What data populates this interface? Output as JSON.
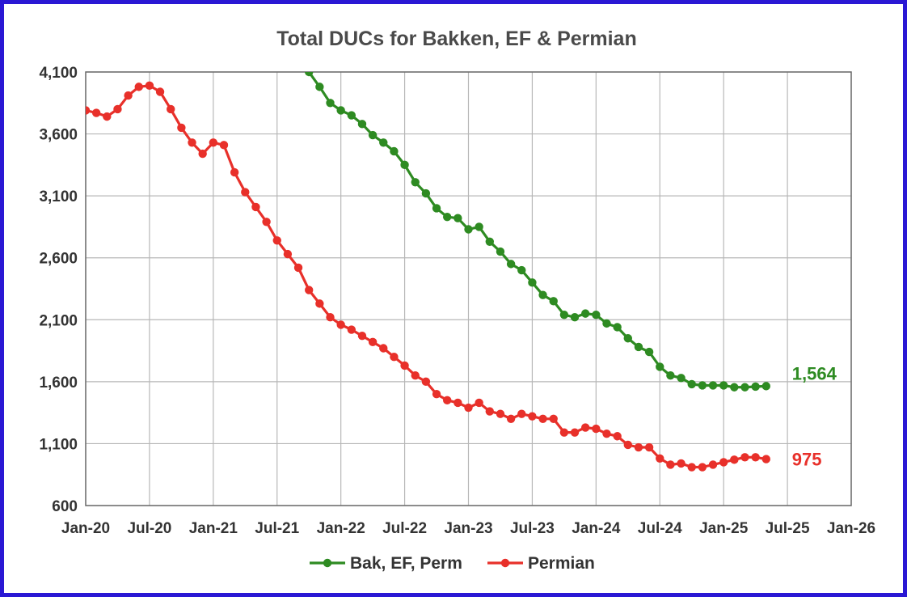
{
  "chart_data": {
    "type": "line",
    "title": "Total DUCs for Bakken, EF & Permian",
    "xlabel": "",
    "ylabel": "",
    "ylim": [
      600,
      4100
    ],
    "yticks": [
      "4,100",
      "3,600",
      "3,100",
      "2,600",
      "2,100",
      "1,600",
      "1,100",
      "600"
    ],
    "xlim": [
      "2020-01",
      "2026-01"
    ],
    "xticks": [
      "Jan-20",
      "Jul-20",
      "Jan-21",
      "Jul-21",
      "Jan-22",
      "Jul-22",
      "Jan-23",
      "Jul-23",
      "Jan-24",
      "Jul-24",
      "Jan-25",
      "Jul-25",
      "Jan-26"
    ],
    "grid": true,
    "legend_position": "bottom",
    "series": [
      {
        "name": "Bak, EF, Perm",
        "color": "#2e8b22",
        "end_label": "1,564",
        "x": [
          "2021-10",
          "2021-11",
          "2021-12",
          "2022-01",
          "2022-02",
          "2022-03",
          "2022-04",
          "2022-05",
          "2022-06",
          "2022-07",
          "2022-08",
          "2022-09",
          "2022-10",
          "2022-11",
          "2022-12",
          "2023-01",
          "2023-02",
          "2023-03",
          "2023-04",
          "2023-05",
          "2023-06",
          "2023-07",
          "2023-08",
          "2023-09",
          "2023-10",
          "2023-11",
          "2023-12",
          "2024-01",
          "2024-02",
          "2024-03",
          "2024-04",
          "2024-05",
          "2024-06",
          "2024-07",
          "2024-08",
          "2024-09",
          "2024-10",
          "2024-11",
          "2024-12",
          "2025-01",
          "2025-02",
          "2025-03",
          "2025-04",
          "2025-05"
        ],
        "values": [
          4100,
          3980,
          3850,
          3790,
          3750,
          3680,
          3590,
          3530,
          3460,
          3350,
          3210,
          3120,
          3000,
          2930,
          2920,
          2830,
          2850,
          2730,
          2650,
          2550,
          2500,
          2400,
          2300,
          2250,
          2140,
          2120,
          2150,
          2140,
          2070,
          2040,
          1950,
          1880,
          1840,
          1720,
          1650,
          1630,
          1580,
          1570,
          1570,
          1570,
          1555,
          1555,
          1560,
          1564
        ]
      },
      {
        "name": "Permian",
        "color": "#e8302a",
        "end_label": "975",
        "x": [
          "2020-01",
          "2020-02",
          "2020-03",
          "2020-04",
          "2020-05",
          "2020-06",
          "2020-07",
          "2020-08",
          "2020-09",
          "2020-10",
          "2020-11",
          "2020-12",
          "2021-01",
          "2021-02",
          "2021-03",
          "2021-04",
          "2021-05",
          "2021-06",
          "2021-07",
          "2021-08",
          "2021-09",
          "2021-10",
          "2021-11",
          "2021-12",
          "2022-01",
          "2022-02",
          "2022-03",
          "2022-04",
          "2022-05",
          "2022-06",
          "2022-07",
          "2022-08",
          "2022-09",
          "2022-10",
          "2022-11",
          "2022-12",
          "2023-01",
          "2023-02",
          "2023-03",
          "2023-04",
          "2023-05",
          "2023-06",
          "2023-07",
          "2023-08",
          "2023-09",
          "2023-10",
          "2023-11",
          "2023-12",
          "2024-01",
          "2024-02",
          "2024-03",
          "2024-04",
          "2024-05",
          "2024-06",
          "2024-07",
          "2024-08",
          "2024-09",
          "2024-10",
          "2024-11",
          "2024-12",
          "2025-01",
          "2025-02",
          "2025-03",
          "2025-04",
          "2025-05"
        ],
        "values": [
          3790,
          3770,
          3740,
          3800,
          3910,
          3980,
          3990,
          3940,
          3800,
          3650,
          3530,
          3440,
          3530,
          3510,
          3290,
          3130,
          3010,
          2890,
          2740,
          2630,
          2520,
          2340,
          2230,
          2120,
          2060,
          2020,
          1970,
          1920,
          1870,
          1800,
          1730,
          1650,
          1600,
          1500,
          1450,
          1430,
          1390,
          1430,
          1360,
          1340,
          1300,
          1340,
          1320,
          1300,
          1300,
          1190,
          1190,
          1230,
          1220,
          1180,
          1160,
          1090,
          1070,
          1070,
          980,
          930,
          940,
          910,
          910,
          930,
          950,
          970,
          990,
          990,
          975
        ]
      }
    ]
  }
}
